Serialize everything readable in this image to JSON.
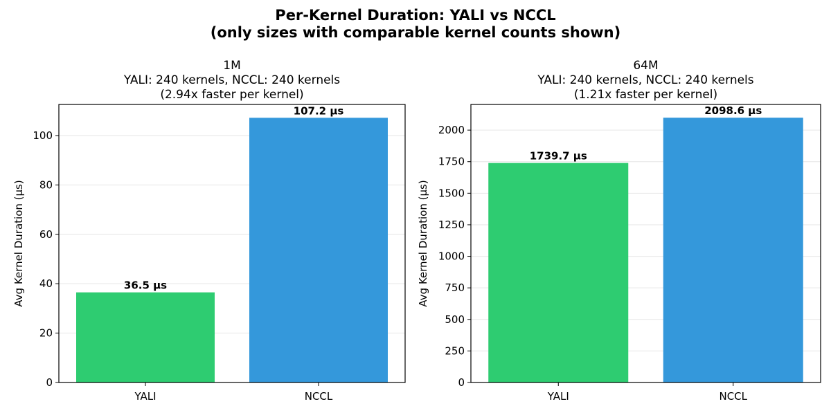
{
  "chart_data": {
    "title": [
      "Per-Kernel Duration: YALI vs NCCL",
      "(only sizes with comparable kernel counts shown)"
    ],
    "panels": [
      {
        "type": "bar",
        "title": [
          "1M",
          "YALI: 240 kernels, NCCL: 240 kernels",
          "(2.94x faster per kernel)"
        ],
        "categories": [
          "YALI",
          "NCCL"
        ],
        "values": [
          36.5,
          107.2
        ],
        "data_labels": [
          "36.5 µs",
          "107.2 µs"
        ],
        "colors": [
          "#2ecc71",
          "#3498db"
        ],
        "ylabel": "Avg Kernel Duration (µs)",
        "ylim": [
          0,
          112.6
        ],
        "yticks": [
          0,
          20,
          40,
          60,
          80,
          100
        ],
        "grid": "y"
      },
      {
        "type": "bar",
        "title": [
          "64M",
          "YALI: 240 kernels, NCCL: 240 kernels",
          "(1.21x faster per kernel)"
        ],
        "categories": [
          "YALI",
          "NCCL"
        ],
        "values": [
          1739.7,
          2098.6
        ],
        "data_labels": [
          "1739.7 µs",
          "2098.6 µs"
        ],
        "colors": [
          "#2ecc71",
          "#3498db"
        ],
        "ylabel": "Avg Kernel Duration (µs)",
        "ylim": [
          0,
          2203.5
        ],
        "yticks": [
          0,
          250,
          500,
          750,
          1000,
          1250,
          1500,
          1750,
          2000
        ],
        "grid": "y"
      }
    ]
  }
}
